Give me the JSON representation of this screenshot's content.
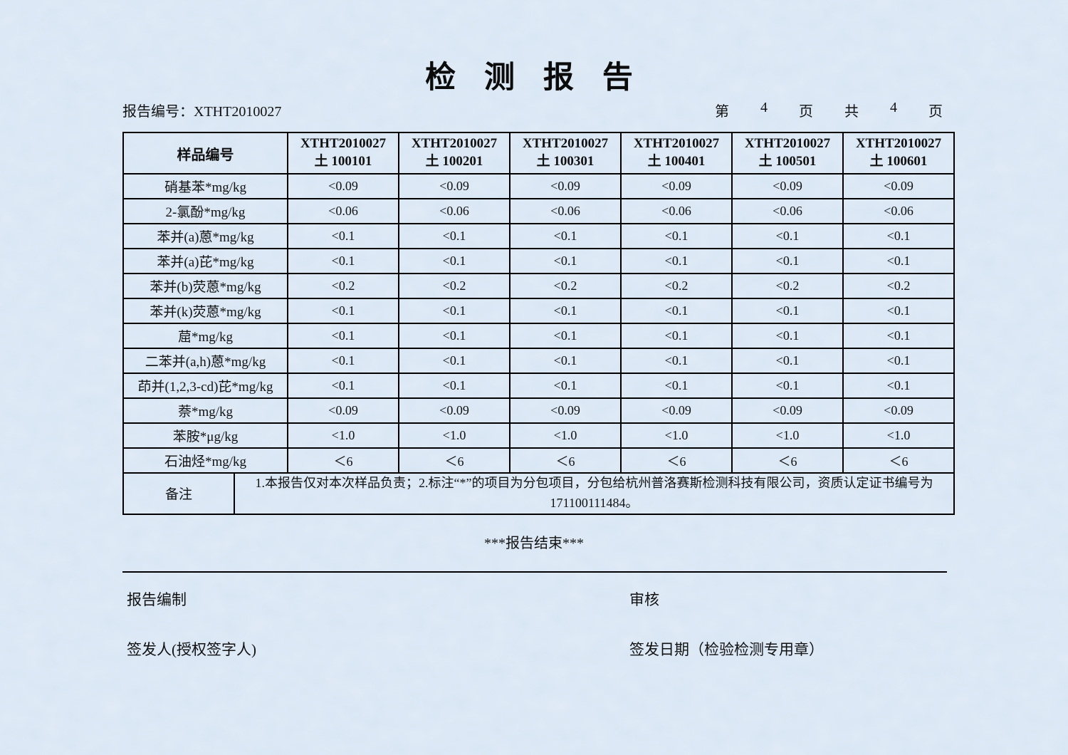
{
  "header": {
    "title": "检 测 报 告",
    "report_no_label": "报告编号：",
    "report_no": "XTHT2010027",
    "page_prefix": "第",
    "page_current": "4",
    "page_mid": "页",
    "page_total_label": "共",
    "page_total": "4",
    "page_suffix": "页"
  },
  "table": {
    "corner_header": "样品编号",
    "columns": [
      {
        "line1": "XTHT2010027",
        "line2": "土 100101"
      },
      {
        "line1": "XTHT2010027",
        "line2": "土 100201"
      },
      {
        "line1": "XTHT2010027",
        "line2": "土 100301"
      },
      {
        "line1": "XTHT2010027",
        "line2": "土 100401"
      },
      {
        "line1": "XTHT2010027",
        "line2": "土 100501"
      },
      {
        "line1": "XTHT2010027",
        "line2": "土 100601"
      }
    ],
    "rows": [
      {
        "label": "硝基苯*mg/kg",
        "values": [
          "<0.09",
          "<0.09",
          "<0.09",
          "<0.09",
          "<0.09",
          "<0.09"
        ]
      },
      {
        "label": "2-氯酚*mg/kg",
        "values": [
          "<0.06",
          "<0.06",
          "<0.06",
          "<0.06",
          "<0.06",
          "<0.06"
        ]
      },
      {
        "label": "苯并(a)蒽*mg/kg",
        "values": [
          "<0.1",
          "<0.1",
          "<0.1",
          "<0.1",
          "<0.1",
          "<0.1"
        ]
      },
      {
        "label": "苯并(a)芘*mg/kg",
        "values": [
          "<0.1",
          "<0.1",
          "<0.1",
          "<0.1",
          "<0.1",
          "<0.1"
        ]
      },
      {
        "label": "苯并(b)荧蒽*mg/kg",
        "values": [
          "<0.2",
          "<0.2",
          "<0.2",
          "<0.2",
          "<0.2",
          "<0.2"
        ]
      },
      {
        "label": "苯并(k)荧蒽*mg/kg",
        "values": [
          "<0.1",
          "<0.1",
          "<0.1",
          "<0.1",
          "<0.1",
          "<0.1"
        ]
      },
      {
        "label": "䓛*mg/kg",
        "values": [
          "<0.1",
          "<0.1",
          "<0.1",
          "<0.1",
          "<0.1",
          "<0.1"
        ]
      },
      {
        "label": "二苯并(a,h)蒽*mg/kg",
        "values": [
          "<0.1",
          "<0.1",
          "<0.1",
          "<0.1",
          "<0.1",
          "<0.1"
        ]
      },
      {
        "label": "茚并(1,2,3-cd)芘*mg/kg",
        "values": [
          "<0.1",
          "<0.1",
          "<0.1",
          "<0.1",
          "<0.1",
          "<0.1"
        ]
      },
      {
        "label": "萘*mg/kg",
        "values": [
          "<0.09",
          "<0.09",
          "<0.09",
          "<0.09",
          "<0.09",
          "<0.09"
        ]
      },
      {
        "label": "苯胺*μg/kg",
        "values": [
          "<1.0",
          "<1.0",
          "<1.0",
          "<1.0",
          "<1.0",
          "<1.0"
        ]
      },
      {
        "label": "石油烃*mg/kg",
        "values": [
          "＜6",
          "＜6",
          "＜6",
          "＜6",
          "＜6",
          "＜6"
        ]
      }
    ],
    "remarks_label": "备注",
    "remarks_text": "1.本报告仅对本次样品负责；2.标注“*”的项目为分包项目，分包给杭州普洛赛斯检测科技有限公司，资质认定证书编号为171100111484。"
  },
  "footer": {
    "end_text": "***报告结束***",
    "prepared_label": "报告编制",
    "reviewed_label": "审核",
    "issuer_label": "签发人(授权签字人)",
    "issue_date_label": "签发日期（检验检测专用章）"
  },
  "colors": {
    "paper": "#cfe0ef",
    "ink": "#111111"
  }
}
